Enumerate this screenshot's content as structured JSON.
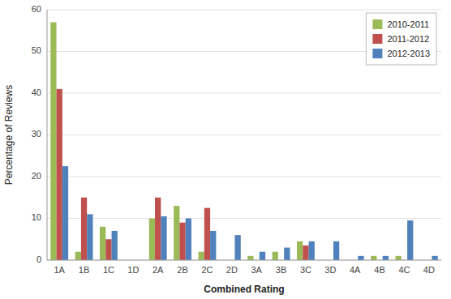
{
  "chart_data": {
    "type": "bar",
    "xlabel": "Combined Rating",
    "ylabel": "Percentage of Reviews",
    "categories": [
      "1A",
      "1B",
      "1C",
      "1D",
      "2A",
      "2B",
      "2C",
      "2D",
      "3A",
      "3B",
      "3C",
      "3D",
      "4A",
      "4B",
      "4C",
      "4D"
    ],
    "series": [
      {
        "name": "2010-2011",
        "color": "#9BBB59",
        "values": [
          57,
          2,
          8,
          0,
          10,
          13,
          2,
          0,
          1,
          2,
          4.5,
          0,
          0,
          1,
          1,
          0
        ]
      },
      {
        "name": "2011-2012",
        "color": "#C0504D",
        "values": [
          41,
          15,
          5,
          0,
          15,
          9,
          12.5,
          0,
          0,
          0,
          3.5,
          0,
          0,
          0,
          0,
          0
        ]
      },
      {
        "name": "2012-2013",
        "color": "#4F81BD",
        "values": [
          22.5,
          11,
          7,
          0,
          10.5,
          10,
          7,
          6,
          2,
          3,
          4.5,
          4.5,
          1,
          1,
          9.5,
          1
        ]
      }
    ],
    "ylim": [
      0,
      60
    ],
    "yticks": [
      0,
      10,
      20,
      30,
      40,
      50,
      60
    ],
    "grid": true,
    "legend": "upper right"
  }
}
